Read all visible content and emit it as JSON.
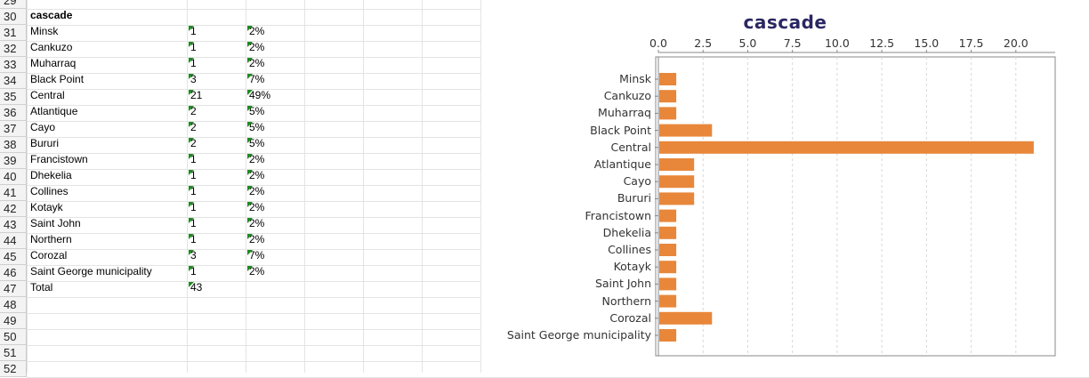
{
  "sheet": {
    "row_numbers": [
      "29",
      "30",
      "31",
      "32",
      "33",
      "34",
      "35",
      "36",
      "37",
      "38",
      "39",
      "40",
      "41",
      "42",
      "43",
      "44",
      "45",
      "46",
      "47",
      "48",
      "49",
      "50",
      "51",
      "52"
    ],
    "header_label": "cascade",
    "rows": [
      {
        "name": "Minsk",
        "count": "1",
        "pct": "2%"
      },
      {
        "name": "Cankuzo",
        "count": "1",
        "pct": "2%"
      },
      {
        "name": "Muharraq",
        "count": "1",
        "pct": "2%"
      },
      {
        "name": "Black Point",
        "count": "3",
        "pct": "7%"
      },
      {
        "name": "Central",
        "count": "21",
        "pct": "49%"
      },
      {
        "name": "Atlantique",
        "count": "2",
        "pct": "5%"
      },
      {
        "name": "Cayo",
        "count": "2",
        "pct": "5%"
      },
      {
        "name": "Bururi",
        "count": "2",
        "pct": "5%"
      },
      {
        "name": "Francistown",
        "count": "1",
        "pct": "2%"
      },
      {
        "name": "Dhekelia",
        "count": "1",
        "pct": "2%"
      },
      {
        "name": "Collines",
        "count": "1",
        "pct": "2%"
      },
      {
        "name": "Kotayk",
        "count": "1",
        "pct": "2%"
      },
      {
        "name": "Saint John",
        "count": "1",
        "pct": "2%"
      },
      {
        "name": "Northern",
        "count": "1",
        "pct": "2%"
      },
      {
        "name": "Corozal",
        "count": "3",
        "pct": "7%"
      },
      {
        "name": "Saint George municipality",
        "count": "1",
        "pct": "2%"
      }
    ],
    "total_label": "Total",
    "total_value": "43"
  },
  "chart_data": {
    "type": "bar",
    "orientation": "horizontal",
    "title": "cascade",
    "categories": [
      "Minsk",
      "Cankuzo",
      "Muharraq",
      "Black Point",
      "Central",
      "Atlantique",
      "Cayo",
      "Bururi",
      "Francistown",
      "Dhekelia",
      "Collines",
      "Kotayk",
      "Saint John",
      "Northern",
      "Corozal",
      "Saint George municipality"
    ],
    "values": [
      1,
      1,
      1,
      3,
      21,
      2,
      2,
      2,
      1,
      1,
      1,
      1,
      1,
      1,
      3,
      1
    ],
    "x_ticks": [
      "0.0",
      "2.5",
      "5.0",
      "7.5",
      "10.0",
      "12.5",
      "15.0",
      "17.5",
      "20.0"
    ],
    "xlim": [
      0,
      22.2
    ],
    "xlabel": "",
    "ylabel": "",
    "axis_position": "top",
    "grid": true,
    "bar_color": "#e8873a",
    "title_color": "#2b2763"
  }
}
